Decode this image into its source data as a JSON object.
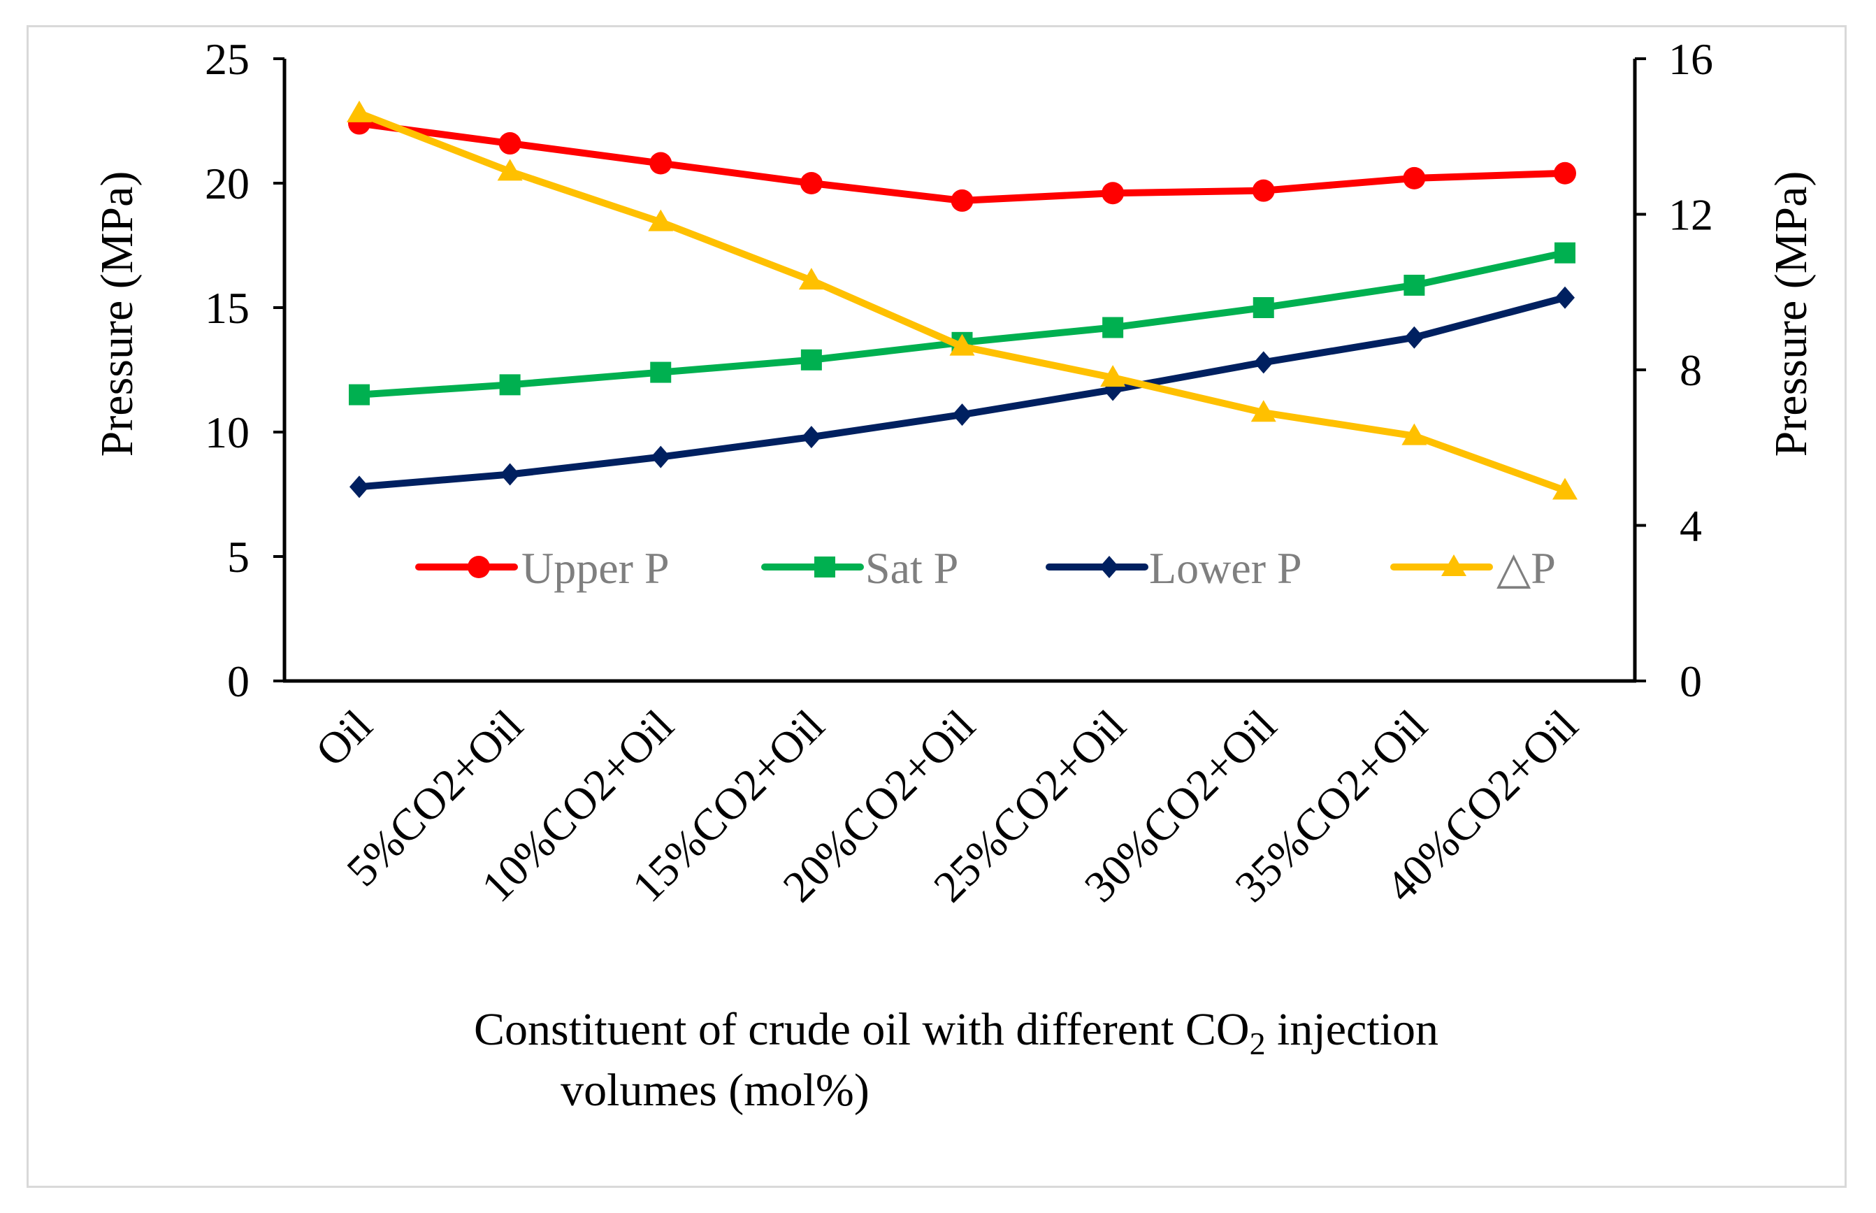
{
  "chart_data": {
    "type": "line",
    "title": "",
    "xlabel_main": "Constituent of crude oil with different CO",
    "xlabel_sub": "2",
    "xlabel_rest": " injection",
    "xlabel_line2": "volumes (mol%)",
    "ylabel_left": "Pressure (MPa)",
    "ylabel_right": "Pressure (MPa)",
    "ylim_left": [
      0,
      25
    ],
    "ylim_right": [
      0,
      16
    ],
    "yticks_left": [
      "0",
      "5",
      "10",
      "15",
      "20",
      "25"
    ],
    "yticks_right": [
      "0",
      "4",
      "8",
      "12",
      "16"
    ],
    "categories": [
      "Oil",
      "5%CO2+Oil",
      "10%CO2+Oil",
      "15%CO2+Oil",
      "20%CO2+Oil",
      "25%CO2+Oil",
      "30%CO2+Oil",
      "35%CO2+Oil",
      "40%CO2+Oil"
    ],
    "legend_position": "inside-center",
    "grid": false,
    "series": [
      {
        "name": "Upper P",
        "axis": "left",
        "color": "#ff0000",
        "marker": "circle",
        "values": [
          22.4,
          21.6,
          20.8,
          20.0,
          19.3,
          19.6,
          19.7,
          20.2,
          20.4
        ]
      },
      {
        "name": "Sat P",
        "axis": "left",
        "color": "#00b050",
        "marker": "square",
        "values": [
          11.5,
          11.9,
          12.4,
          12.9,
          13.6,
          14.2,
          15.0,
          15.9,
          17.2
        ]
      },
      {
        "name": "Lower P",
        "axis": "left",
        "color": "#002060",
        "marker": "diamond",
        "values": [
          7.8,
          8.3,
          9.0,
          9.8,
          10.7,
          11.7,
          12.8,
          13.8,
          15.4
        ]
      },
      {
        "name": "△P",
        "axis": "right",
        "color": "#ffc000",
        "marker": "triangle",
        "values": [
          14.6,
          13.1,
          11.8,
          10.3,
          8.6,
          7.8,
          6.9,
          6.3,
          4.9
        ]
      }
    ]
  }
}
